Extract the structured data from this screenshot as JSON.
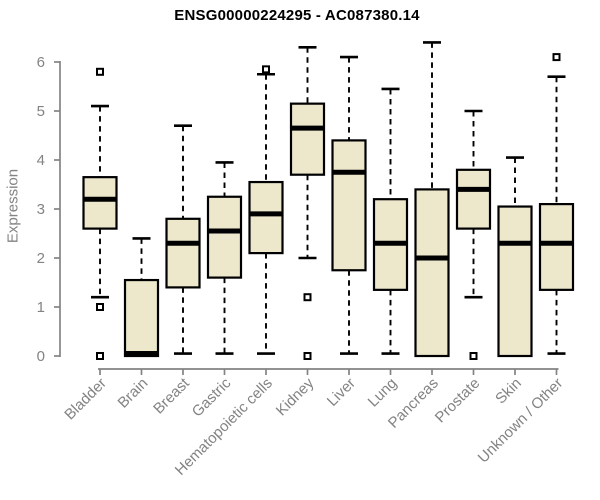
{
  "chart_data": {
    "type": "boxplot",
    "title": "ENSG00000224295 - AC087380.14",
    "ylabel": "Expression",
    "xlabel": "",
    "ylim": [
      0,
      6
    ],
    "yticks": [
      0,
      1,
      2,
      3,
      4,
      5,
      6
    ],
    "grid": false,
    "legend": "none",
    "categories": [
      "Bladder",
      "Brain",
      "Breast",
      "Gastric",
      "Hematopoietic cells",
      "Kidney",
      "Liver",
      "Lung",
      "Pancreas",
      "Prostate",
      "Skin",
      "Unknown / Other"
    ],
    "series": [
      {
        "category": "Bladder",
        "whisker_low": 1.2,
        "q1": 2.6,
        "median": 3.2,
        "q3": 3.65,
        "whisker_high": 5.1,
        "outliers": [
          5.8,
          1.0,
          0.0
        ]
      },
      {
        "category": "Brain",
        "whisker_low": null,
        "q1": 0.0,
        "median": 0.05,
        "q3": 1.55,
        "whisker_high": 2.4,
        "outliers": []
      },
      {
        "category": "Breast",
        "whisker_low": 0.05,
        "q1": 1.4,
        "median": 2.3,
        "q3": 2.8,
        "whisker_high": 4.7,
        "outliers": []
      },
      {
        "category": "Gastric",
        "whisker_low": 0.05,
        "q1": 1.6,
        "median": 2.55,
        "q3": 3.25,
        "whisker_high": 3.95,
        "outliers": []
      },
      {
        "category": "Hematopoietic cells",
        "whisker_low": 0.05,
        "q1": 2.1,
        "median": 2.9,
        "q3": 3.55,
        "whisker_high": 5.75,
        "outliers": [
          5.85
        ]
      },
      {
        "category": "Kidney",
        "whisker_low": 2.0,
        "q1": 3.7,
        "median": 4.65,
        "q3": 5.15,
        "whisker_high": 6.3,
        "outliers": [
          1.2,
          0.0
        ]
      },
      {
        "category": "Liver",
        "whisker_low": 0.05,
        "q1": 1.75,
        "median": 3.75,
        "q3": 4.4,
        "whisker_high": 6.1,
        "outliers": []
      },
      {
        "category": "Lung",
        "whisker_low": 0.05,
        "q1": 1.35,
        "median": 2.3,
        "q3": 3.2,
        "whisker_high": 5.45,
        "outliers": []
      },
      {
        "category": "Pancreas",
        "whisker_low": null,
        "q1": 0.0,
        "median": 2.0,
        "q3": 3.4,
        "whisker_high": 6.4,
        "outliers": []
      },
      {
        "category": "Prostate",
        "whisker_low": 1.2,
        "q1": 2.6,
        "median": 3.4,
        "q3": 3.8,
        "whisker_high": 5.0,
        "outliers": [
          0.0
        ]
      },
      {
        "category": "Skin",
        "whisker_low": null,
        "q1": 0.0,
        "median": 2.3,
        "q3": 3.05,
        "whisker_high": 4.05,
        "outliers": []
      },
      {
        "category": "Unknown / Other",
        "whisker_low": 0.05,
        "q1": 1.35,
        "median": 2.3,
        "q3": 3.1,
        "whisker_high": 5.7,
        "outliers": [
          6.1
        ]
      }
    ],
    "colors": {
      "box_fill": "#EDE8CC",
      "box_stroke": "#000000",
      "median": "#000000",
      "whisker": "#000000",
      "outlier_fill": "#FFFFFF",
      "axis": "#838383",
      "tick_label": "#838383",
      "title": "#000000",
      "background": "#FFFFFF"
    }
  }
}
